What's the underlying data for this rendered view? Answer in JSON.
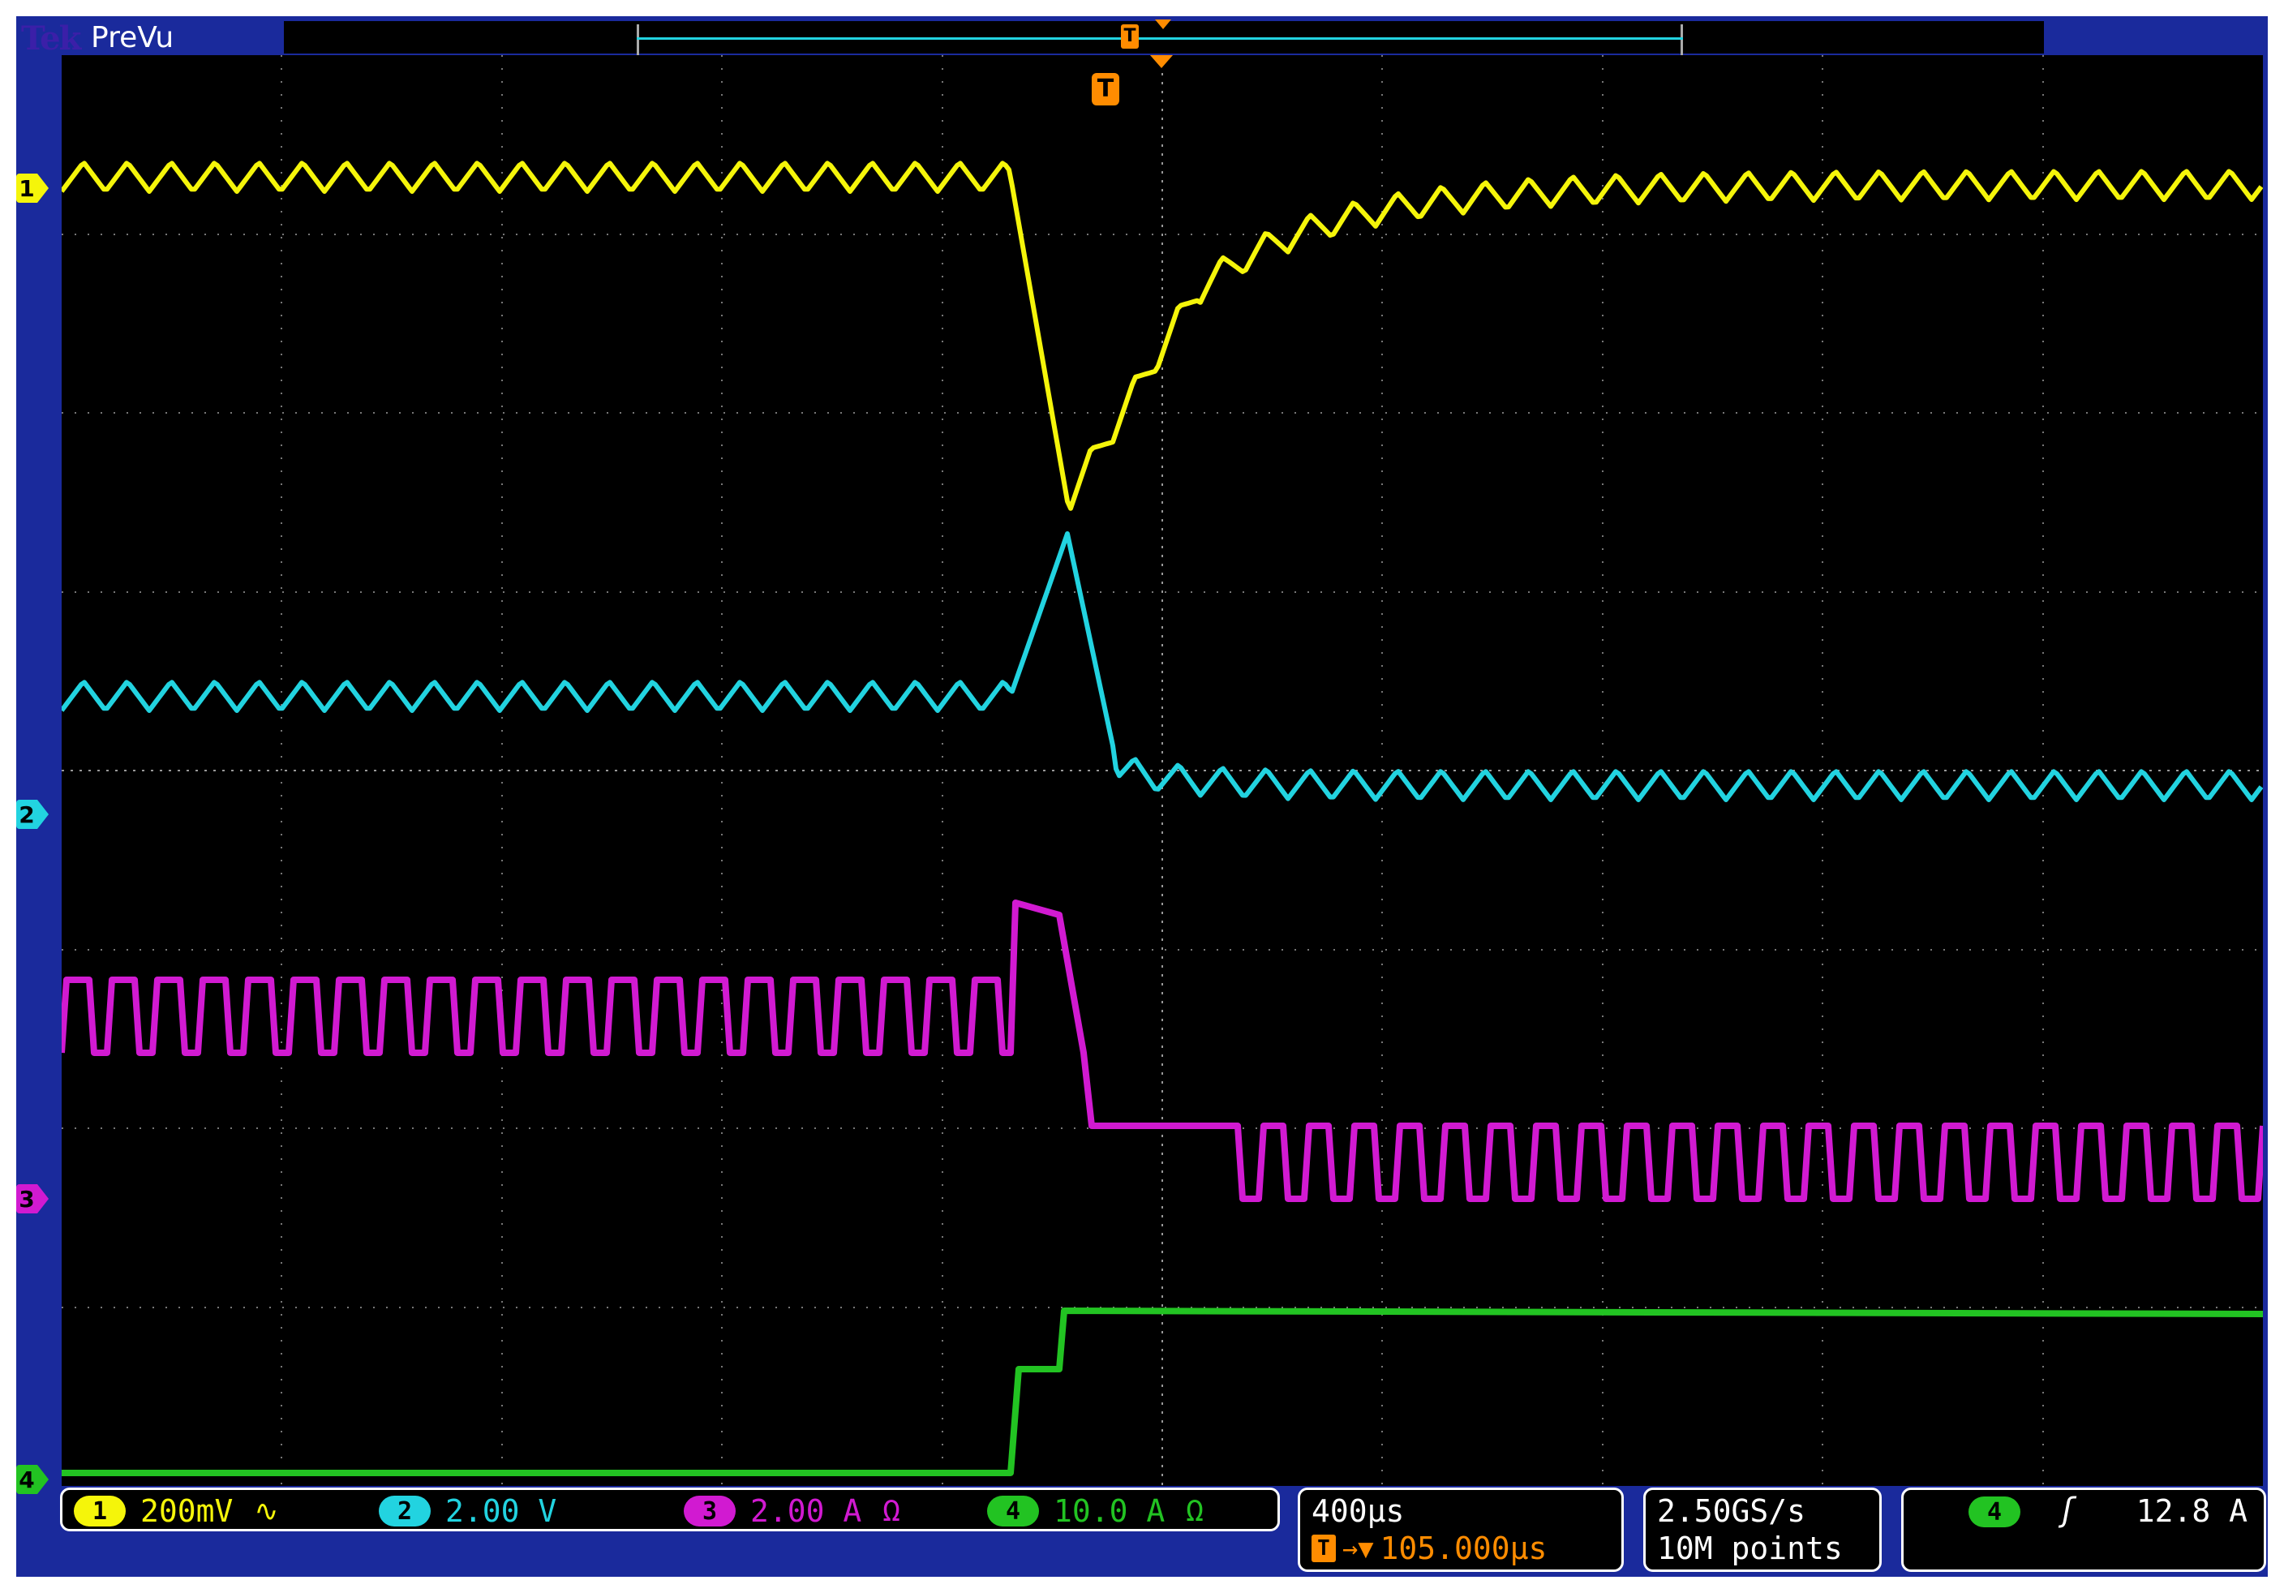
{
  "header": {
    "logo": "Tek",
    "mode": "PreVu"
  },
  "markers": {
    "trigger_symbol": "T",
    "channels": [
      {
        "label": "1",
        "color": "#f5f50a"
      },
      {
        "label": "2",
        "color": "#22d3e0"
      },
      {
        "label": "3",
        "color": "#d11ad1"
      },
      {
        "label": "4",
        "color": "#22c322"
      }
    ]
  },
  "channels": [
    {
      "id": "1",
      "scale": "200mV",
      "suffix": "∿",
      "color": "#f5f50a"
    },
    {
      "id": "2",
      "scale": "2.00 V",
      "suffix": "",
      "color": "#22d3e0"
    },
    {
      "id": "3",
      "scale": "2.00 A",
      "suffix": "Ω",
      "color": "#d11ad1"
    },
    {
      "id": "4",
      "scale": "10.0 A",
      "suffix": "Ω",
      "color": "#22c322"
    }
  ],
  "timebase": {
    "scale": "400µs",
    "delay_arrow": "→▼",
    "delay": "105.000µs"
  },
  "acquisition": {
    "sample_rate": "2.50GS/s",
    "record_length": "10M points"
  },
  "trigger": {
    "source": "4",
    "slope": "ʃ",
    "level": "12.8 A"
  }
}
